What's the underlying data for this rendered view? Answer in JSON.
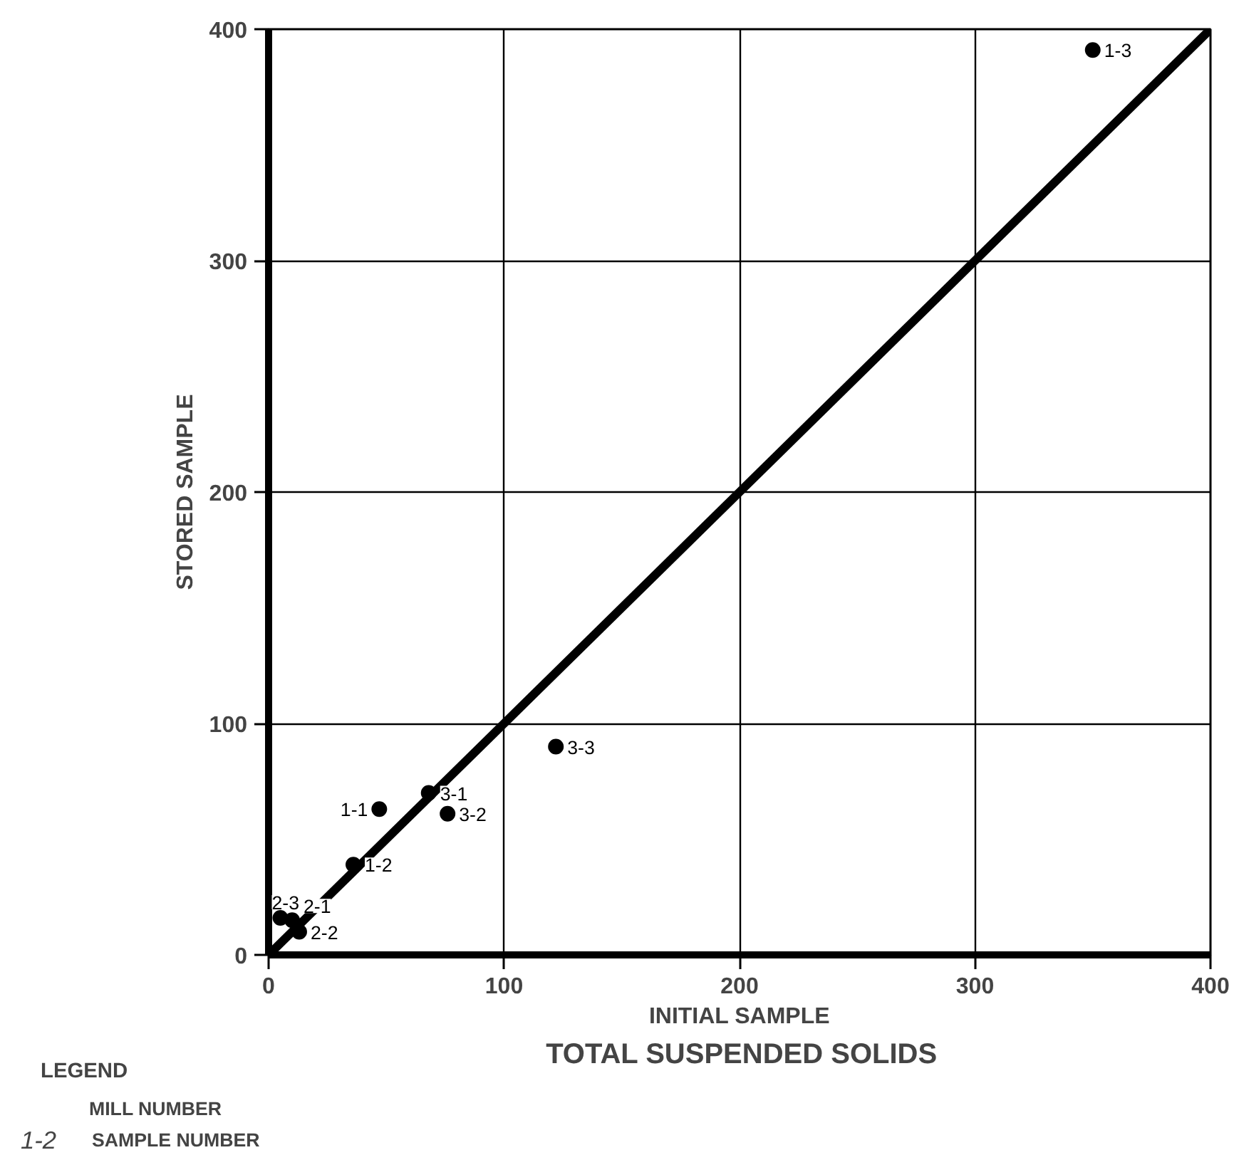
{
  "chart_data": {
    "type": "scatter",
    "title": "TOTAL SUSPENDED SOLIDS",
    "xlabel": "INITIAL SAMPLE",
    "ylabel": "STORED SAMPLE",
    "xlim": [
      0,
      400
    ],
    "ylim": [
      0,
      400
    ],
    "xticks": [
      0,
      100,
      200,
      300,
      400
    ],
    "yticks": [
      0,
      100,
      200,
      300,
      400
    ],
    "grid": true,
    "series": [
      {
        "marker": "circle",
        "color": "#000000",
        "x": [
          47,
          36,
          350,
          10,
          13,
          5,
          68,
          76,
          122
        ],
        "values": [
          63,
          39,
          391,
          15,
          10,
          16,
          70,
          61,
          90
        ]
      },
      {
        "type": "line",
        "color": "#000000",
        "x": [
          0,
          400
        ],
        "values": [
          0,
          400
        ],
        "marker": "none"
      }
    ],
    "annotations": [
      {
        "text": "1-1",
        "x": 47,
        "y": 63
      },
      {
        "text": "1-2",
        "x": 36,
        "y": 39
      },
      {
        "text": "1-3",
        "x": 350,
        "y": 391
      },
      {
        "text": "2-1",
        "x": 10,
        "y": 15
      },
      {
        "text": "2-2",
        "x": 13,
        "y": 10
      },
      {
        "text": "2-3",
        "x": 5,
        "y": 16
      },
      {
        "text": "3-1",
        "x": 68,
        "y": 70
      },
      {
        "text": "3-2",
        "x": 76,
        "y": 61
      },
      {
        "text": "3-3",
        "x": 122,
        "y": 90
      },
      "LEGEND",
      "MILL NUMBER",
      "1-2",
      "SAMPLE NUMBER"
    ]
  }
}
